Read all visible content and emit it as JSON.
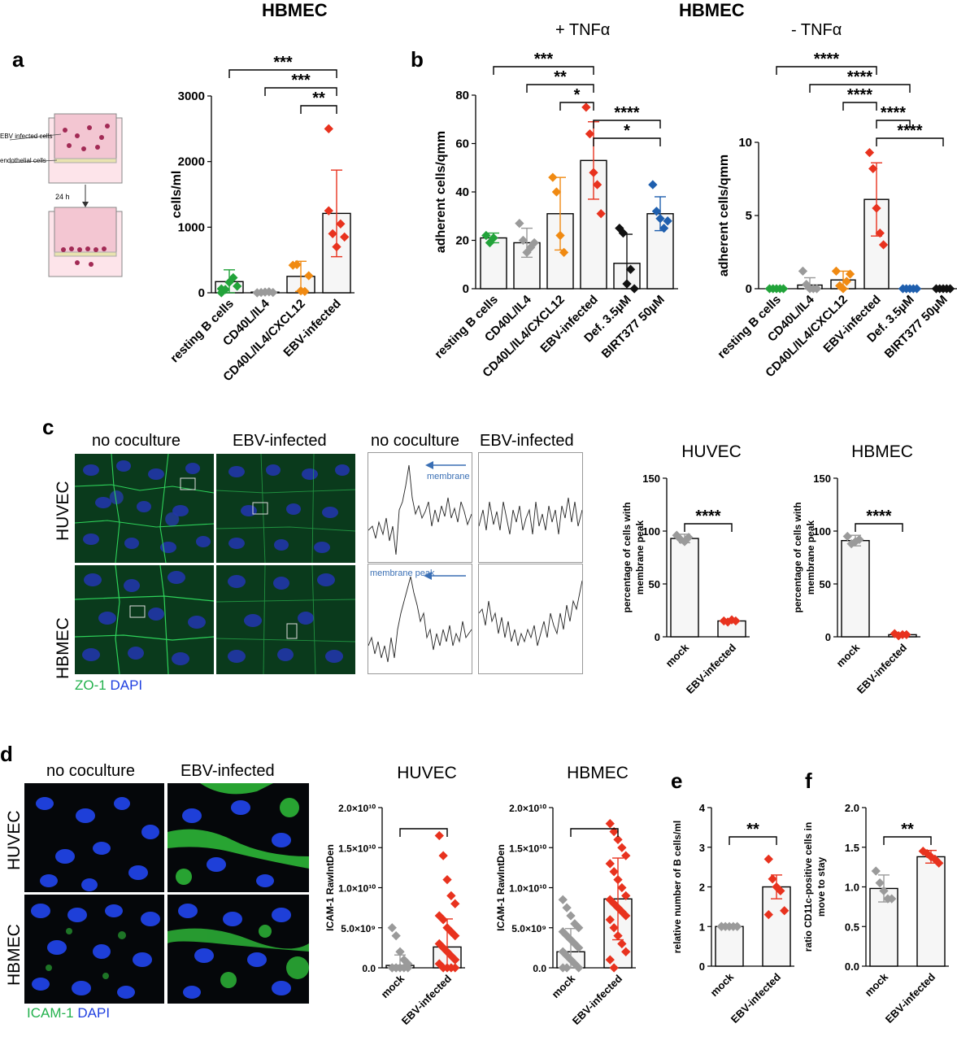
{
  "panels": {
    "a": "a",
    "b": "b",
    "c": "c",
    "d": "d",
    "e": "e",
    "f": "f"
  },
  "headers": {
    "hbmec_a": "HBMEC",
    "hbmec_b": "HBMEC",
    "tnf_plus": "+ TNFα",
    "tnf_minus": "- TNFα"
  },
  "schematic": {
    "infected": "EBV infected cells",
    "endo": "endothelial cells",
    "time": "24 h"
  },
  "c": {
    "col1": "no coculture",
    "col2": "EBV-infected",
    "col3": "no coculture",
    "col4": "EBV-infected",
    "row1": "HUVEC",
    "row2": "HBMEC",
    "peak_label": "membrane peak",
    "legend_a": "ZO-1",
    "legend_b": "DAPI",
    "huvec_title": "HUVEC",
    "hbmec_title": "HBMEC"
  },
  "d": {
    "col1": "no coculture",
    "col2": "EBV-infected",
    "row1": "HUVEC",
    "row2": "HBMEC",
    "legend_a": "ICAM-1",
    "legend_b": "DAPI",
    "huvec_title": "HUVEC",
    "hbmec_title": "HBMEC"
  },
  "colors": {
    "green": "#22a33a",
    "grey": "#9a9a9a",
    "orange": "#f08a12",
    "red": "#e8321e",
    "black": "#111111",
    "blue": "#1f5fae"
  },
  "chart_data": [
    {
      "id": "a",
      "type": "bar",
      "ylabel": "cells/ml",
      "ylim": [
        0,
        3000
      ],
      "ticks": [
        0,
        1000,
        2000,
        3000
      ],
      "categories": [
        "resting B cells",
        "CD40L/IL4",
        "CD40L/IL4/CXCL12",
        "EBV-infected"
      ],
      "values": [
        170,
        10,
        250,
        1210
      ],
      "err": [
        180,
        15,
        230,
        660
      ],
      "colors": [
        "#22a33a",
        "#9a9a9a",
        "#f08a12",
        "#e8321e"
      ],
      "points": [
        [
          0,
          50,
          160,
          230,
          100,
          60
        ],
        [
          0,
          5,
          10,
          15,
          5,
          0
        ],
        [
          420,
          430,
          30,
          20,
          260
        ],
        [
          2500,
          900,
          700,
          1050,
          850,
          1250
        ]
      ],
      "sig": [
        {
          "a": 0,
          "b": 3,
          "t": "***"
        },
        {
          "a": 1,
          "b": 3,
          "t": "***"
        },
        {
          "a": 2,
          "b": 3,
          "t": "**"
        }
      ]
    },
    {
      "id": "b1",
      "type": "bar",
      "ylabel": "adherent cells/qmm",
      "ylim": [
        0,
        80
      ],
      "ticks": [
        0,
        20,
        40,
        60,
        80
      ],
      "categories": [
        "resting B cells",
        "CD40L/IL4",
        "CD40L/IL4/CXCL12",
        "EBV-infected",
        "Def. 3.5µM",
        "BIRT377 50µM"
      ],
      "values": [
        21,
        19,
        31,
        53,
        10.5,
        31
      ],
      "err": [
        2,
        6,
        15,
        16,
        12,
        7
      ],
      "colors": [
        "#22a33a",
        "#9a9a9a",
        "#f08a12",
        "#e8321e",
        "#111111",
        "#1f5fae"
      ],
      "points": [
        [
          22,
          19,
          21
        ],
        [
          27,
          20,
          15,
          17,
          19
        ],
        [
          46,
          40,
          22,
          15
        ],
        [
          75,
          64,
          48,
          43,
          31
        ],
        [
          25,
          23,
          2,
          8,
          0
        ],
        [
          43,
          32,
          29,
          25,
          28
        ]
      ],
      "sig": [
        {
          "a": 0,
          "b": 3,
          "t": "***"
        },
        {
          "a": 1,
          "b": 3,
          "t": "**"
        },
        {
          "a": 2,
          "b": 3,
          "t": "*"
        },
        {
          "a": 3,
          "b": 5,
          "t": "****"
        },
        {
          "a": 3,
          "b": 5,
          "t": "*"
        }
      ]
    },
    {
      "id": "b2",
      "type": "bar",
      "ylabel": "adherent cells/qmm",
      "ylim": [
        0,
        10
      ],
      "ticks": [
        0,
        5,
        10
      ],
      "categories": [
        "resting B cells",
        "CD40L/IL4",
        "CD40L/IL4/CXCL12",
        "EBV-infected",
        "Def. 3.5µM",
        "BIRT377 50µM"
      ],
      "values": [
        0,
        0.25,
        0.6,
        6.1,
        0,
        0
      ],
      "err": [
        0,
        0.5,
        0.6,
        2.5,
        0,
        0
      ],
      "colors": [
        "#22a33a",
        "#9a9a9a",
        "#f08a12",
        "#e8321e",
        "#1f5fae",
        "#111111"
      ],
      "points": [
        [
          0,
          0,
          0,
          0,
          0
        ],
        [
          1.2,
          0.3,
          0,
          0,
          0
        ],
        [
          1.2,
          0.2,
          0,
          0.5,
          1.0
        ],
        [
          9.3,
          8.2,
          5.5,
          3.8,
          3.0
        ],
        [
          0,
          0,
          0,
          0,
          0
        ],
        [
          0,
          0,
          0,
          0,
          0
        ]
      ],
      "sig": [
        {
          "a": 0,
          "b": 3,
          "t": "****"
        },
        {
          "a": 1,
          "b": 4,
          "t": "****"
        },
        {
          "a": 2,
          "b": 3,
          "t": "****"
        },
        {
          "a": 3,
          "b": 4,
          "t": "****"
        },
        {
          "a": 3,
          "b": 5,
          "t": "****"
        }
      ]
    },
    {
      "id": "c1",
      "type": "bar",
      "title": "HUVEC",
      "ylabel": "percentage of cells with membrane peak",
      "ylim": [
        0,
        150
      ],
      "ticks": [
        0,
        50,
        100,
        150
      ],
      "categories": [
        "mock",
        "EBV-infected"
      ],
      "values": [
        93,
        15
      ],
      "err": [
        4,
        1
      ],
      "colors": [
        "#9a9a9a",
        "#e8321e"
      ],
      "points": [
        [
          96,
          92,
          90,
          94
        ],
        [
          15,
          14,
          16,
          15
        ]
      ],
      "sig": [
        {
          "a": 0,
          "b": 1,
          "t": "****"
        }
      ]
    },
    {
      "id": "c2",
      "type": "bar",
      "title": "HBMEC",
      "ylabel": "percentage of cells with membrane peak",
      "ylim": [
        0,
        150
      ],
      "ticks": [
        0,
        50,
        100,
        150
      ],
      "categories": [
        "mock",
        "EBV-infected"
      ],
      "values": [
        91,
        2
      ],
      "err": [
        5,
        1
      ],
      "colors": [
        "#9a9a9a",
        "#e8321e"
      ],
      "points": [
        [
          95,
          88,
          90,
          92
        ],
        [
          3,
          1,
          2,
          2
        ]
      ],
      "sig": [
        {
          "a": 0,
          "b": 1,
          "t": "****"
        }
      ]
    },
    {
      "id": "d1",
      "type": "bar",
      "title": "HUVEC",
      "ylabel": "ICAM-1 RawIntDen",
      "ylim": [
        0,
        20000000000.0
      ],
      "ticks": [
        0,
        5000000000.0,
        10000000000.0,
        15000000000.0,
        20000000000.0
      ],
      "tick_labels": [
        "0.0",
        "5.0×10⁹",
        "1.0×10¹⁰",
        "1.5×10¹⁰",
        "2.0×10¹⁰"
      ],
      "categories": [
        "mock",
        "EBV-infected"
      ],
      "values": [
        300000000.0,
        2600000000.0
      ],
      "err": [
        1300000000.0,
        3500000000.0
      ],
      "colors": [
        "#9a9a9a",
        "#e8321e"
      ],
      "points": [
        [
          5000000000.0,
          4000000000.0,
          2000000000.0,
          1000000000.0,
          500000000.0,
          0,
          0,
          0,
          0,
          0,
          0,
          0
        ],
        [
          16500000000.0,
          14000000000.0,
          11000000000.0,
          9000000000.0,
          8000000000.0,
          6500000000.0,
          6000000000.0,
          5000000000.0,
          4500000000.0,
          4000000000.0,
          3000000000.0,
          2500000000.0,
          2000000000.0,
          1500000000.0,
          1000000000.0,
          500000000.0,
          0,
          0,
          0,
          0
        ]
      ],
      "sig": [
        {
          "a": 0,
          "b": 1,
          "t": ""
        }
      ]
    },
    {
      "id": "d2",
      "type": "bar",
      "title": "HBMEC",
      "ylabel": "ICAM-1 RawIntDen",
      "ylim": [
        0,
        20000000000.0
      ],
      "ticks": [
        0,
        5000000000.0,
        10000000000.0,
        15000000000.0,
        20000000000.0
      ],
      "tick_labels": [
        "0.0",
        "5.0×10⁹",
        "1.0×10¹⁰",
        "1.5×10¹⁰",
        "2.0×10¹⁰"
      ],
      "categories": [
        "mock",
        "EBV-infected"
      ],
      "values": [
        2000000000.0,
        8600000000.0
      ],
      "err": [
        2900000000.0,
        5100000000.0
      ],
      "colors": [
        "#9a9a9a",
        "#e8321e"
      ],
      "points": [
        [
          8500000000.0,
          7500000000.0,
          6500000000.0,
          5500000000.0,
          5000000000.0,
          4500000000.0,
          4000000000.0,
          3500000000.0,
          3000000000.0,
          2500000000.0,
          2000000000.0,
          1500000000.0,
          1000000000.0,
          500000000.0,
          0,
          0,
          0
        ],
        [
          18000000000.0,
          17000000000.0,
          16000000000.0,
          15000000000.0,
          14000000000.0,
          13000000000.0,
          12000000000.0,
          11000000000.0,
          10000000000.0,
          9000000000.0,
          8500000000.0,
          8000000000.0,
          7500000000.0,
          7000000000.0,
          6500000000.0,
          6000000000.0,
          5000000000.0,
          4000000000.0,
          3000000000.0,
          2000000000.0,
          1000000000.0,
          0
        ]
      ],
      "sig": [
        {
          "a": 0,
          "b": 1,
          "t": ""
        }
      ]
    },
    {
      "id": "e",
      "type": "bar",
      "ylabel": "relative number of B cells/ml",
      "ylim": [
        0,
        4
      ],
      "ticks": [
        0,
        1,
        2,
        3,
        4
      ],
      "categories": [
        "mock",
        "EBV-infected"
      ],
      "values": [
        1.0,
        2.0
      ],
      "err": [
        0,
        0.3
      ],
      "colors": [
        "#9a9a9a",
        "#e8321e"
      ],
      "points": [
        [
          1,
          1,
          1,
          1,
          1,
          1
        ],
        [
          2.7,
          2.2,
          2.0,
          1.9,
          1.4,
          1.3
        ]
      ],
      "sig": [
        {
          "a": 0,
          "b": 1,
          "t": "**"
        }
      ]
    },
    {
      "id": "f",
      "type": "bar",
      "ylabel": "ratio CD11c-positive cells in move to stay",
      "ylim": [
        0,
        2.0
      ],
      "ticks": [
        0,
        0.5,
        1.0,
        1.5,
        2.0
      ],
      "tick_labels": [
        "0.0",
        "0.5",
        "1.0",
        "1.5",
        "2.0"
      ],
      "categories": [
        "mock",
        "EBV-infected"
      ],
      "values": [
        0.98,
        1.38
      ],
      "err": [
        0.17,
        0.08
      ],
      "colors": [
        "#9a9a9a",
        "#e8321e"
      ],
      "points": [
        [
          1.2,
          1.05,
          0.95,
          0.85,
          0.85
        ],
        [
          1.45,
          1.42,
          1.38,
          1.35,
          1.3
        ]
      ],
      "sig": [
        {
          "a": 0,
          "b": 1,
          "t": "**"
        }
      ]
    }
  ]
}
